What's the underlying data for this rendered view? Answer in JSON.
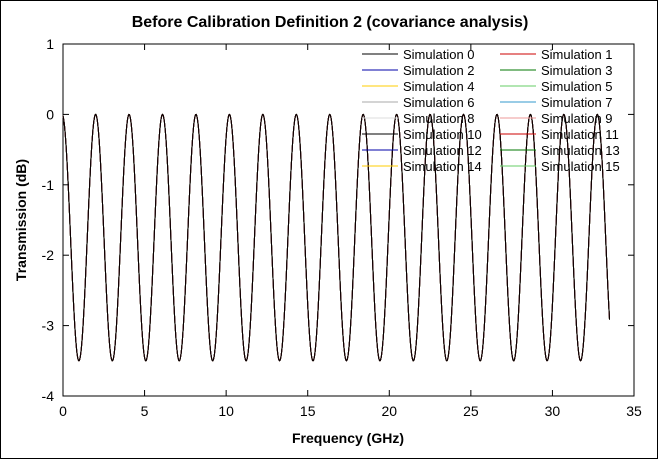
{
  "chart_data": {
    "type": "line",
    "title": "Before Calibration Definition 2 (covariance analysis)",
    "xlabel": "Frequency (GHz)",
    "ylabel": "Transmission (dB)",
    "xlim": [
      0,
      35
    ],
    "ylim": [
      -4,
      1
    ],
    "xticks": [
      0,
      5,
      10,
      15,
      20,
      25,
      30,
      35
    ],
    "yticks": [
      1,
      0,
      -1,
      -2,
      -3,
      -4
    ],
    "grid": false,
    "legend_position": "top-right",
    "x_range": [
      0,
      33.5
    ],
    "period_ghz": 2.05,
    "peak_db": 0,
    "trough_db": -3.5,
    "first_peak_ghz": 2.0,
    "series": [
      {
        "name": "Simulation 0",
        "color": "#000000"
      },
      {
        "name": "Simulation 1",
        "color": "#cc0000"
      },
      {
        "name": "Simulation 2",
        "color": "#0000aa"
      },
      {
        "name": "Simulation 3",
        "color": "#007700"
      },
      {
        "name": "Simulation 4",
        "color": "#ffcc00"
      },
      {
        "name": "Simulation 5",
        "color": "#66cc66"
      },
      {
        "name": "Simulation 6",
        "color": "#aaaaaa"
      },
      {
        "name": "Simulation 7",
        "color": "#3399cc"
      },
      {
        "name": "Simulation 8",
        "color": "#dddddd"
      },
      {
        "name": "Simulation 9",
        "color": "#ee9999"
      },
      {
        "name": "Simulation 10",
        "color": "#000000"
      },
      {
        "name": "Simulation 11",
        "color": "#cc0000"
      },
      {
        "name": "Simulation 12",
        "color": "#0000aa"
      },
      {
        "name": "Simulation 13",
        "color": "#007700"
      },
      {
        "name": "Simulation 14",
        "color": "#ffcc00"
      },
      {
        "name": "Simulation 15",
        "color": "#66cc66"
      }
    ]
  }
}
